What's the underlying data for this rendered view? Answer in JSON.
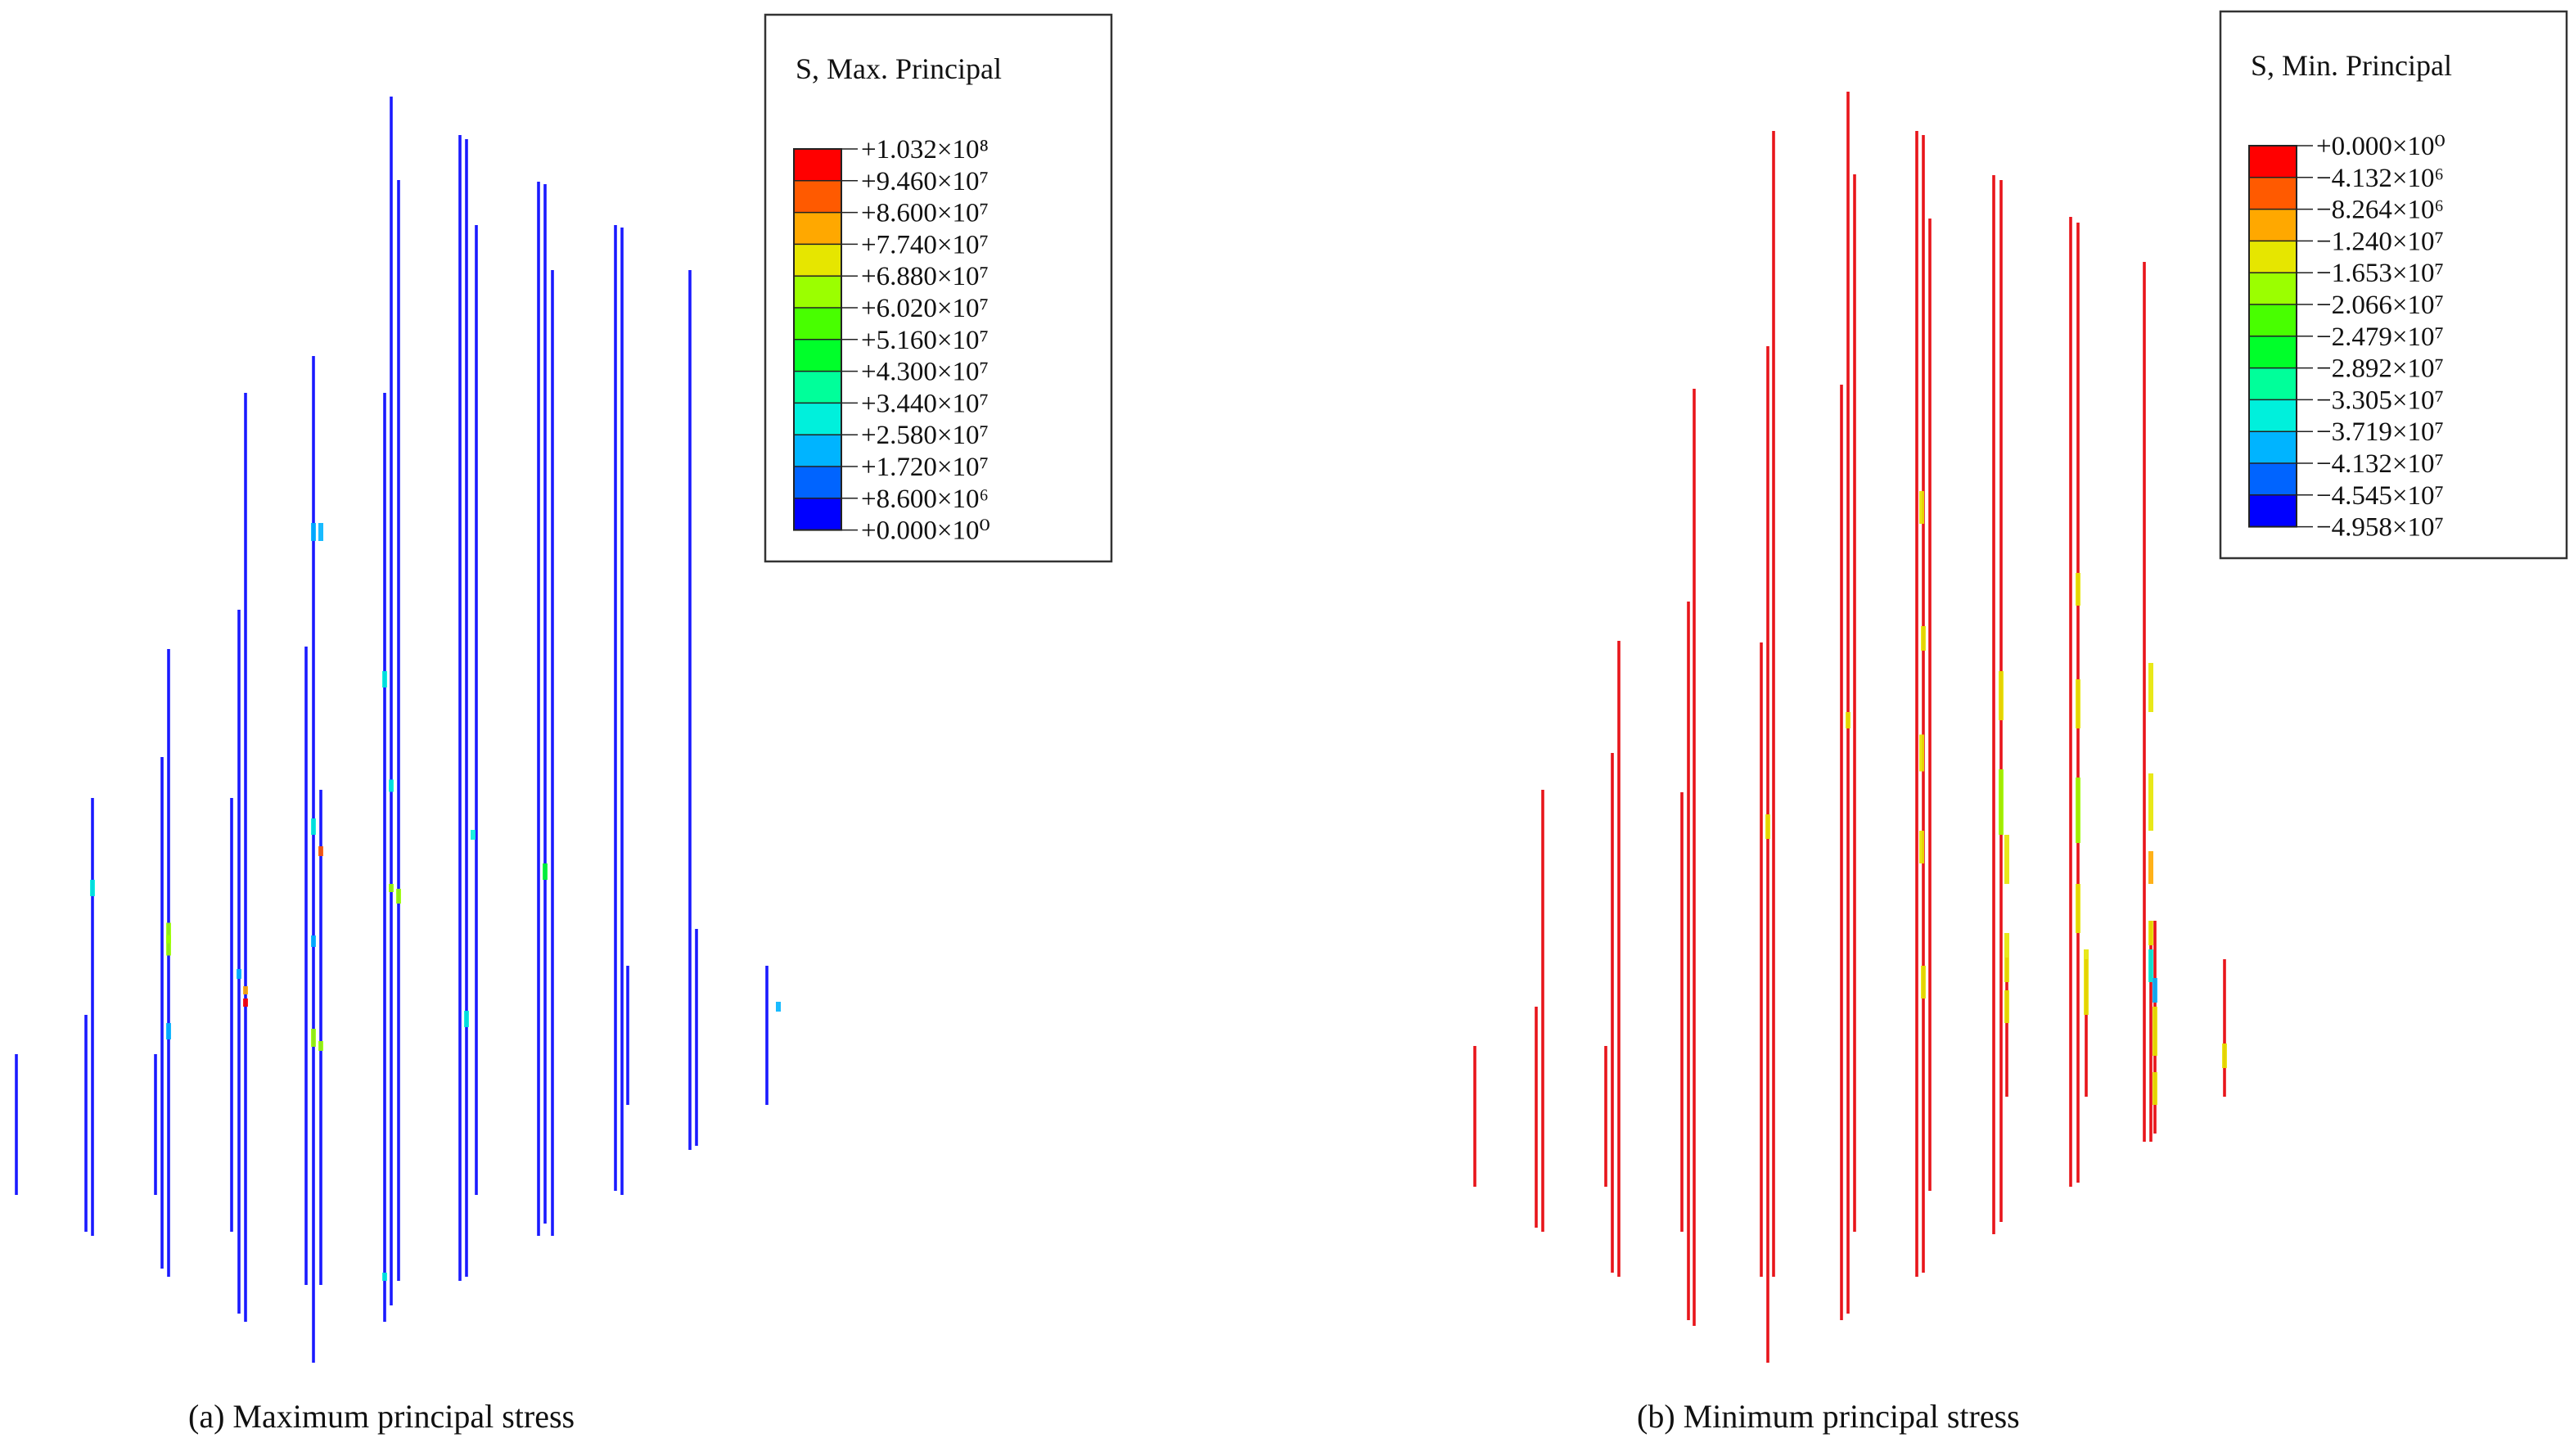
{
  "panels": [
    {
      "caption": "(a) Maximum principal stress",
      "legend": {
        "title": "S, Max. Principal",
        "labels": [
          "+1.032×10⁸",
          "+9.460×10⁷",
          "+8.600×10⁷",
          "+7.740×10⁷",
          "+6.880×10⁷",
          "+6.020×10⁷",
          "+5.160×10⁷",
          "+4.300×10⁷",
          "+3.440×10⁷",
          "+2.580×10⁷",
          "+1.720×10⁷",
          "+8.600×10⁶",
          "+0.000×10⁰"
        ],
        "colors": [
          "#ff0000",
          "#ff5a00",
          "#ffa800",
          "#e6e600",
          "#9bff00",
          "#48ff00",
          "#00ff2a",
          "#00ff9a",
          "#00f0dc",
          "#00b4ff",
          "#0064ff",
          "#0000ff"
        ]
      },
      "base_color": "#1a1aff"
    },
    {
      "caption": "(b) Minimum principal stress",
      "legend": {
        "title": "S, Min. Principal",
        "labels": [
          "+0.000×10⁰",
          "−4.132×10⁶",
          "−8.264×10⁶",
          "−1.240×10⁷",
          "−1.653×10⁷",
          "−2.066×10⁷",
          "−2.479×10⁷",
          "−2.892×10⁷",
          "−3.305×10⁷",
          "−3.719×10⁷",
          "−4.132×10⁷",
          "−4.545×10⁷",
          "−4.958×10⁷"
        ],
        "colors": [
          "#ff0000",
          "#ff5a00",
          "#ffa800",
          "#e6e600",
          "#9bff00",
          "#48ff00",
          "#00ff2a",
          "#00ff9a",
          "#00f0dc",
          "#00b4ff",
          "#0064ff",
          "#0000ff"
        ]
      },
      "base_color": "#e8151b"
    }
  ]
}
